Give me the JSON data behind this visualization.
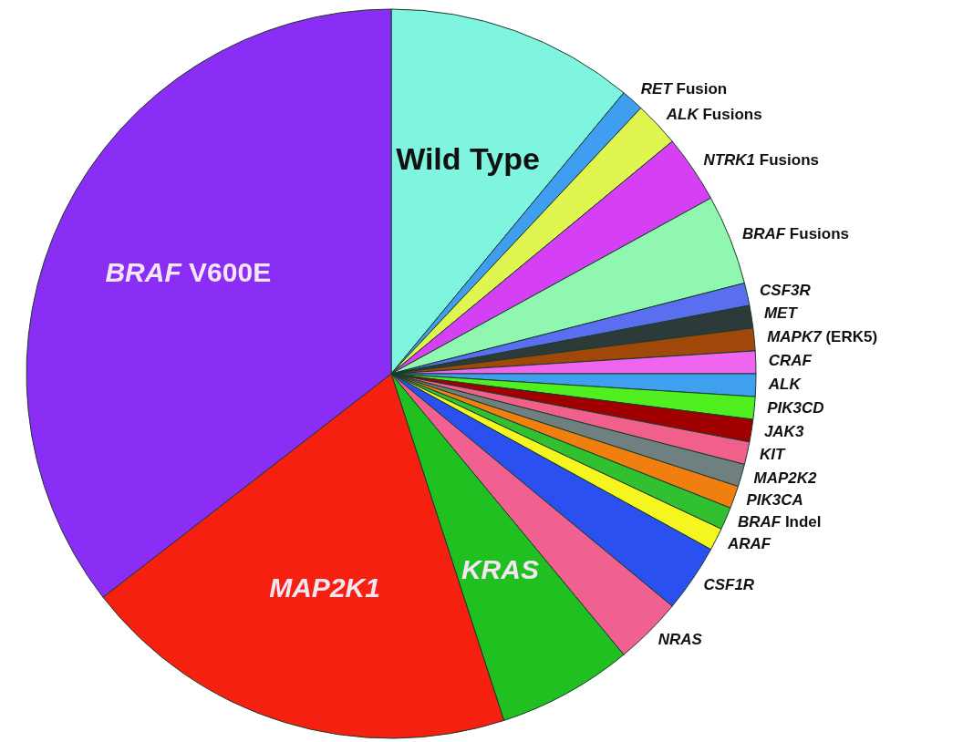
{
  "chart_data": {
    "type": "pie",
    "categories": [
      "Wild Type",
      "RET Fusion",
      "ALK Fusions",
      "NTRK1 Fusions",
      "BRAF Fusions",
      "CSF3R",
      "MET",
      "MAPK7 (ERK5)",
      "CRAF",
      "ALK",
      "PIK3CD",
      "JAK3",
      "KIT",
      "MAP2K2",
      "PIK3CA",
      "BRAF Indel",
      "ARAF",
      "CSF1R",
      "NRAS",
      "KRAS",
      "MAP2K1",
      "BRAF V600E"
    ],
    "values": [
      11,
      1,
      2,
      3,
      4,
      1,
      1,
      1,
      1,
      1,
      1,
      1,
      1,
      1,
      1,
      1,
      1,
      3,
      3,
      6,
      19.5,
      35.5
    ],
    "colors": [
      "#7ff5e0",
      "#3f9ef0",
      "#e0f550",
      "#d540f5",
      "#90f7b0",
      "#5a6ef0",
      "#2d3a3a",
      "#a0470a",
      "#f065f0",
      "#3fa0f0",
      "#50f020",
      "#a00000",
      "#f0608a",
      "#708080",
      "#f07f10",
      "#30c030",
      "#f5f520",
      "#2a50f0",
      "#f06090",
      "#20c020",
      "#f52010",
      "#8a2ef5"
    ]
  }
}
